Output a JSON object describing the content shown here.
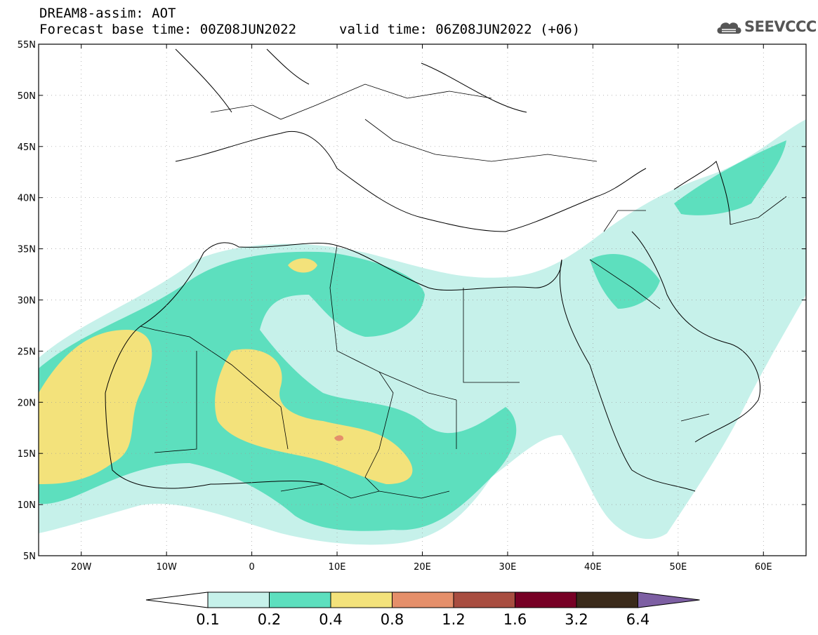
{
  "header": {
    "line1": "DREAM8-assim: AOT",
    "line2": "Forecast base time: 00Z08JUN2022",
    "valid": "valid time: 06Z08JUN2022 (+06)",
    "logo_text": "SEEVCCC"
  },
  "map": {
    "lon_range": [
      -25,
      65
    ],
    "lat_range": [
      5,
      55
    ],
    "lat_labels": [
      "55N",
      "50N",
      "45N",
      "40N",
      "35N",
      "30N",
      "25N",
      "20N",
      "15N",
      "10N",
      "5N"
    ],
    "lon_labels": [
      "20W",
      "10W",
      "0",
      "10E",
      "20E",
      "30E",
      "40E",
      "50E",
      "60E"
    ]
  },
  "colorbar": {
    "labels": [
      "0.1",
      "0.2",
      "0.4",
      "0.8",
      "1.2",
      "1.6",
      "3.2",
      "6.4"
    ],
    "colors": [
      "#c6f1ea",
      "#5ddfbe",
      "#f3e27b",
      "#e58f6a",
      "#a84d40",
      "#770025",
      "#3a2a1a",
      "#7d5fa3"
    ]
  }
}
